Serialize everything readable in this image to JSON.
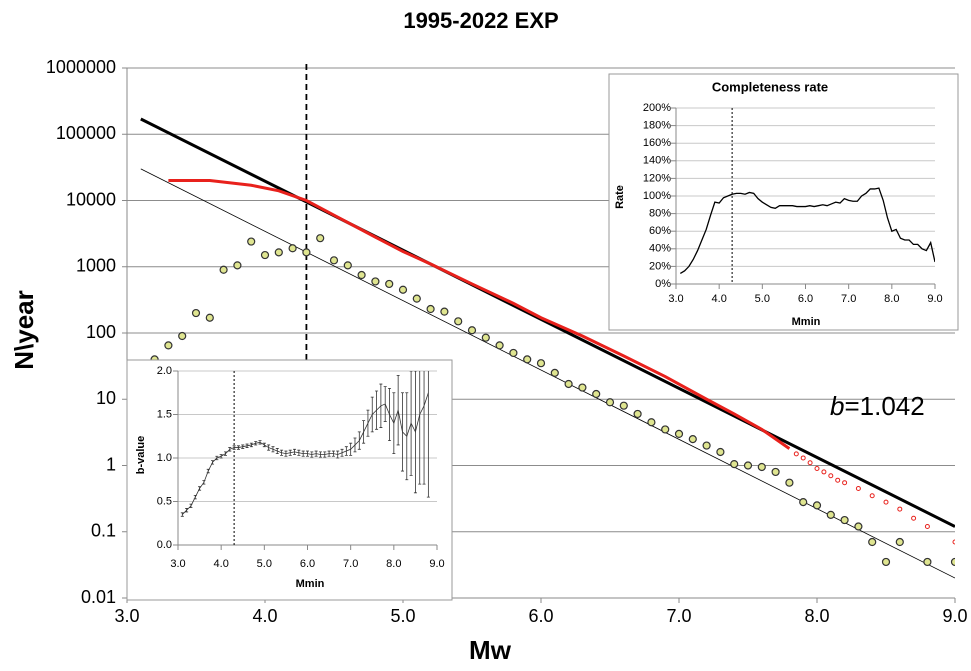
{
  "chart_data": [
    {
      "type": "scatter",
      "title": "1995-2022 EXP",
      "xlabel": "Mw",
      "ylabel": "N\\year",
      "log_y": true,
      "grid": true,
      "xlim": [
        3.0,
        9.0
      ],
      "ylim": [
        0.01,
        1000000
      ],
      "xticks": [
        {
          "value": 3.0,
          "label": "3.0"
        },
        {
          "value": 4.0,
          "label": "4.0"
        },
        {
          "value": 5.0,
          "label": "5.0"
        },
        {
          "value": 6.0,
          "label": "6.0"
        },
        {
          "value": 7.0,
          "label": "7.0"
        },
        {
          "value": 8.0,
          "label": "8.0"
        },
        {
          "value": 9.0,
          "label": "9.0"
        }
      ],
      "yticks": [
        0.01,
        0.1,
        1,
        10,
        100,
        1000,
        10000,
        100000,
        1000000
      ],
      "vline": 4.3,
      "annotation": {
        "italic": "b",
        "text": "=1.042"
      },
      "series": [
        {
          "style": "line",
          "color": "#000000",
          "x": [
            3.1,
            9.0
          ],
          "values": [
            170000,
            0.12
          ]
        },
        {
          "style": "thin-line",
          "color": "#000000",
          "x": [
            3.1,
            9.0
          ],
          "values": [
            30000,
            0.02
          ]
        },
        {
          "style": "line",
          "color": "#e8211c",
          "x": [
            3.3,
            3.6,
            3.9,
            4.1,
            4.3,
            4.5,
            4.8,
            5.0,
            5.2,
            5.5,
            5.8,
            6.0,
            6.3,
            6.6,
            6.9,
            7.2,
            7.4,
            7.6,
            7.8
          ],
          "values": [
            20000,
            20000,
            17000,
            14000,
            10000,
            6000,
            2800,
            1700,
            1100,
            550,
            280,
            170,
            90,
            45,
            22,
            10,
            6,
            3.5,
            1.8
          ]
        },
        {
          "style": "ring",
          "color": "#e8211c",
          "x": [
            7.85,
            7.9,
            7.95,
            8.0,
            8.05,
            8.1,
            8.15,
            8.2,
            8.3,
            8.4,
            8.5,
            8.6,
            8.7,
            8.8,
            9.0
          ],
          "values": [
            1.5,
            1.3,
            1.1,
            0.9,
            0.8,
            0.7,
            0.6,
            0.55,
            0.45,
            0.35,
            0.28,
            0.22,
            0.16,
            0.12,
            0.07
          ]
        },
        {
          "style": "markers",
          "color": "#dfe590",
          "x": [
            3.1,
            3.2,
            3.3,
            3.4,
            3.5,
            3.6,
            3.7,
            3.8,
            3.9,
            4.0,
            4.1,
            4.2,
            4.3,
            4.4,
            4.5,
            4.6,
            4.7,
            4.8,
            4.9,
            5.0,
            5.1,
            5.2,
            5.3,
            5.4,
            5.5,
            5.6,
            5.7,
            5.8,
            5.9,
            6.0,
            6.1,
            6.2,
            6.3,
            6.4,
            6.5,
            6.6,
            6.7,
            6.8,
            6.9,
            7.0,
            7.1,
            7.2,
            7.3,
            7.4,
            7.5,
            7.6,
            7.7,
            7.8,
            7.9,
            8.0,
            8.1,
            8.2,
            8.3,
            8.4,
            8.5,
            8.6,
            8.8,
            9.0
          ],
          "values": [
            25,
            40,
            65,
            90,
            200,
            170,
            900,
            1050,
            2400,
            1500,
            1650,
            1900,
            1650,
            2700,
            1250,
            1050,
            750,
            600,
            550,
            450,
            330,
            230,
            210,
            150,
            110,
            85,
            65,
            50,
            40,
            35,
            25,
            17,
            15,
            12,
            9,
            8,
            6,
            4.5,
            3.5,
            3,
            2.5,
            2,
            1.6,
            1.05,
            1,
            0.95,
            0.8,
            0.55,
            0.28,
            0.25,
            0.18,
            0.15,
            0.12,
            0.07,
            0.035,
            0.07,
            0.035,
            0.035
          ]
        }
      ]
    },
    {
      "type": "line",
      "title": "Completeness rate",
      "xlabel": "Mmin",
      "ylabel": "Rate",
      "grid": true,
      "xlim": [
        3.0,
        9.0
      ],
      "ylim": [
        0,
        200
      ],
      "xticks": [
        {
          "value": 3.0,
          "label": "3.0"
        },
        {
          "value": 4.0,
          "label": "4.0"
        },
        {
          "value": 5.0,
          "label": "5.0"
        },
        {
          "value": 6.0,
          "label": "6.0"
        },
        {
          "value": 7.0,
          "label": "7.0"
        },
        {
          "value": 8.0,
          "label": "8.0"
        },
        {
          "value": 9.0,
          "label": "9.0"
        }
      ],
      "yticks": [
        {
          "value": 0,
          "label": "0%"
        },
        {
          "value": 20,
          "label": "20%"
        },
        {
          "value": 40,
          "label": "40%"
        },
        {
          "value": 60,
          "label": "60%"
        },
        {
          "value": 80,
          "label": "80%"
        },
        {
          "value": 100,
          "label": "100%"
        },
        {
          "value": 120,
          "label": "120%"
        },
        {
          "value": 140,
          "label": "140%"
        },
        {
          "value": 160,
          "label": "160%"
        },
        {
          "value": 180,
          "label": "180%"
        },
        {
          "value": 200,
          "label": "200%"
        }
      ],
      "vline": 4.3,
      "series": [
        {
          "style": "thin-line",
          "color": "#000000",
          "x": [
            3.1,
            3.2,
            3.3,
            3.4,
            3.5,
            3.6,
            3.7,
            3.8,
            3.9,
            4.0,
            4.1,
            4.2,
            4.3,
            4.4,
            4.5,
            4.6,
            4.7,
            4.8,
            4.9,
            5.0,
            5.1,
            5.2,
            5.3,
            5.4,
            5.5,
            5.6,
            5.7,
            5.8,
            5.9,
            6.0,
            6.1,
            6.2,
            6.3,
            6.4,
            6.5,
            6.6,
            6.7,
            6.8,
            6.9,
            7.0,
            7.1,
            7.2,
            7.3,
            7.4,
            7.5,
            7.6,
            7.7,
            7.8,
            7.9,
            8.0,
            8.1,
            8.2,
            8.3,
            8.4,
            8.5,
            8.6,
            8.7,
            8.8,
            8.9,
            9.0
          ],
          "values": [
            12,
            15,
            20,
            28,
            38,
            50,
            62,
            78,
            93,
            92,
            98,
            100,
            102,
            103,
            103,
            102,
            104,
            103,
            97,
            93,
            90,
            87,
            86,
            89,
            89,
            89,
            89,
            88,
            88,
            88,
            89,
            88,
            89,
            90,
            89,
            91,
            93,
            92,
            97,
            95,
            94,
            94,
            100,
            103,
            108,
            108,
            109,
            95,
            75,
            60,
            62,
            52,
            50,
            50,
            45,
            45,
            40,
            38,
            47,
            25
          ]
        }
      ]
    },
    {
      "type": "errorbar",
      "xlabel": "Mmin",
      "ylabel": "b-value",
      "grid": true,
      "xlim": [
        3.0,
        9.0
      ],
      "ylim": [
        0,
        2
      ],
      "xticks": [
        {
          "value": 3.0,
          "label": "3.0"
        },
        {
          "value": 4.0,
          "label": "4.0"
        },
        {
          "value": 5.0,
          "label": "5.0"
        },
        {
          "value": 6.0,
          "label": "6.0"
        },
        {
          "value": 7.0,
          "label": "7.0"
        },
        {
          "value": 8.0,
          "label": "8.0"
        },
        {
          "value": 9.0,
          "label": "9.0"
        }
      ],
      "yticks": [
        {
          "value": 0,
          "label": "0.0"
        },
        {
          "value": 0.5,
          "label": "0.5"
        },
        {
          "value": 1,
          "label": "1.0"
        },
        {
          "value": 1.5,
          "label": "1.5"
        },
        {
          "value": 2,
          "label": "2.0"
        }
      ],
      "vline": 4.3,
      "series": [
        {
          "style": "errorbar",
          "color": "#333333",
          "x": [
            3.1,
            3.2,
            3.3,
            3.4,
            3.5,
            3.6,
            3.7,
            3.8,
            3.9,
            4.0,
            4.1,
            4.2,
            4.3,
            4.4,
            4.5,
            4.6,
            4.7,
            4.8,
            4.9,
            5.0,
            5.1,
            5.2,
            5.3,
            5.4,
            5.5,
            5.6,
            5.7,
            5.8,
            5.9,
            6.0,
            6.1,
            6.2,
            6.3,
            6.4,
            6.5,
            6.6,
            6.7,
            6.8,
            6.9,
            7.0,
            7.1,
            7.2,
            7.3,
            7.4,
            7.5,
            7.6,
            7.7,
            7.8,
            7.9,
            8.0,
            8.1,
            8.2,
            8.3,
            8.4,
            8.5,
            8.6,
            8.7,
            8.8
          ],
          "values": [
            0.35,
            0.4,
            0.45,
            0.55,
            0.65,
            0.72,
            0.85,
            0.95,
            1.0,
            1.02,
            1.05,
            1.1,
            1.12,
            1.12,
            1.13,
            1.14,
            1.15,
            1.17,
            1.18,
            1.15,
            1.12,
            1.1,
            1.08,
            1.06,
            1.05,
            1.06,
            1.07,
            1.06,
            1.05,
            1.05,
            1.04,
            1.05,
            1.04,
            1.04,
            1.05,
            1.05,
            1.04,
            1.06,
            1.08,
            1.1,
            1.15,
            1.2,
            1.3,
            1.4,
            1.5,
            1.55,
            1.6,
            1.62,
            1.5,
            1.4,
            1.55,
            1.3,
            1.25,
            1.4,
            1.3,
            1.5,
            1.6,
            1.75
          ],
          "errors": [
            0.02,
            0.02,
            0.02,
            0.02,
            0.02,
            0.02,
            0.02,
            0.02,
            0.02,
            0.02,
            0.02,
            0.02,
            0.02,
            0.02,
            0.02,
            0.02,
            0.02,
            0.02,
            0.02,
            0.02,
            0.03,
            0.03,
            0.03,
            0.03,
            0.03,
            0.03,
            0.03,
            0.03,
            0.03,
            0.03,
            0.03,
            0.03,
            0.03,
            0.03,
            0.03,
            0.03,
            0.04,
            0.04,
            0.05,
            0.07,
            0.08,
            0.1,
            0.13,
            0.15,
            0.2,
            0.22,
            0.25,
            0.2,
            0.3,
            0.35,
            0.4,
            0.45,
            0.5,
            0.6,
            0.7,
            0.8,
            0.9,
            1.2
          ]
        }
      ]
    }
  ]
}
